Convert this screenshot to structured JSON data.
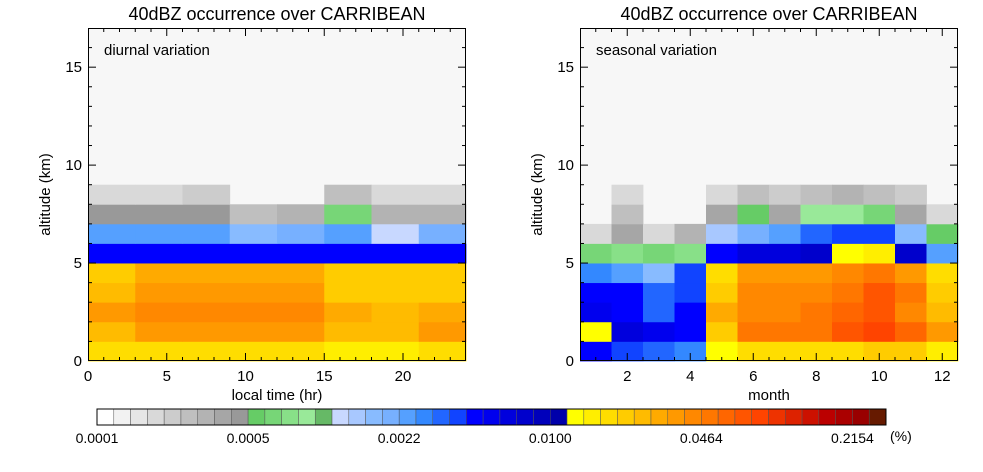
{
  "palette": [
    "#ffffff",
    "#f2f2f2",
    "#e6e6e6",
    "#d9d9d9",
    "#cccccc",
    "#bfbfbf",
    "#b3b3b3",
    "#a6a6a6",
    "#999999",
    "#66cc66",
    "#77d677",
    "#88e088",
    "#99e999",
    "#66b966",
    "#c8d8ff",
    "#a8c8ff",
    "#88bbff",
    "#77b0ff",
    "#55a0ff",
    "#3388ff",
    "#2266ff",
    "#1144ff",
    "#0000ff",
    "#0000ee",
    "#0000dd",
    "#0000cc",
    "#0000bb",
    "#0000aa",
    "#ffff00",
    "#ffee00",
    "#ffdd00",
    "#ffcc00",
    "#ffbb00",
    "#ffaa00",
    "#ff9900",
    "#ff8800",
    "#ff7700",
    "#ff6600",
    "#ff5500",
    "#ff4400",
    "#ee3300",
    "#dd2200",
    "#cc1100",
    "#bb0000",
    "#aa0000",
    "#990000",
    "#661a00"
  ],
  "chart_data": [
    {
      "type": "heatmap",
      "title": "40dBZ occurrence over CARRIBEAN",
      "annotation": "diurnal variation",
      "xlabel": "local time (hr)",
      "ylabel": "altitude (km)",
      "xlim": [
        0,
        24
      ],
      "ylim": [
        0,
        17
      ],
      "x_ticks": [
        "0",
        "5",
        "10",
        "15",
        "20"
      ],
      "x_tick_values": [
        0,
        5,
        10,
        15,
        20
      ],
      "y_ticks": [
        "0",
        "5",
        "10",
        "15"
      ],
      "y_tick_values": [
        0,
        5,
        10,
        15
      ],
      "background": "#f7f7f7",
      "x_edges": [
        0,
        3,
        6,
        9,
        12,
        15,
        18,
        21,
        24
      ],
      "y_edges": [
        0,
        1,
        2,
        3,
        4,
        5,
        6,
        7,
        8,
        9
      ],
      "color_index": [
        [
          30,
          30,
          30,
          30,
          30,
          29,
          29,
          30
        ],
        [
          32,
          34,
          34,
          34,
          34,
          32,
          32,
          34
        ],
        [
          34,
          35,
          35,
          35,
          35,
          33,
          32,
          33
        ],
        [
          32,
          34,
          34,
          34,
          34,
          31,
          31,
          31
        ],
        [
          31,
          33,
          33,
          33,
          33,
          31,
          31,
          31
        ],
        [
          22,
          22,
          22,
          22,
          22,
          22,
          22,
          22
        ],
        [
          18,
          18,
          18,
          16,
          17,
          18,
          14,
          17
        ],
        [
          8,
          8,
          8,
          5,
          6,
          10,
          6,
          6
        ],
        [
          3,
          3,
          4,
          null,
          null,
          5,
          3,
          3
        ],
        [
          null,
          null,
          null,
          null,
          null,
          2,
          null,
          null
        ]
      ]
    },
    {
      "type": "heatmap",
      "title": "40dBZ occurrence over CARRIBEAN",
      "annotation": "seasonal variation",
      "xlabel": "month",
      "ylabel": "altitude (km)",
      "xlim": [
        0.5,
        12.5
      ],
      "ylim": [
        0,
        17
      ],
      "x_ticks": [
        "2",
        "4",
        "6",
        "8",
        "10",
        "12"
      ],
      "x_tick_values": [
        2,
        4,
        6,
        8,
        10,
        12
      ],
      "y_ticks": [
        "0",
        "5",
        "10",
        "15"
      ],
      "y_tick_values": [
        0,
        5,
        10,
        15
      ],
      "background": "#f7f7f7",
      "x_edges": [
        0.5,
        1.5,
        2.5,
        3.5,
        4.5,
        5.5,
        6.5,
        7.5,
        8.5,
        9.5,
        10.5,
        11.5,
        12.5
      ],
      "y_edges": [
        0,
        1,
        2,
        3,
        4,
        5,
        6,
        7,
        8,
        9
      ],
      "color_index": [
        [
          22,
          21,
          20,
          19,
          28,
          30,
          30,
          30,
          30,
          31,
          31,
          29
        ],
        [
          28,
          24,
          23,
          22,
          31,
          36,
          36,
          36,
          38,
          39,
          37,
          34
        ],
        [
          23,
          22,
          20,
          22,
          33,
          35,
          35,
          36,
          37,
          38,
          35,
          32
        ],
        [
          22,
          22,
          20,
          21,
          31,
          35,
          35,
          35,
          36,
          38,
          36,
          31
        ],
        [
          19,
          18,
          16,
          21,
          30,
          34,
          34,
          34,
          35,
          36,
          34,
          30
        ],
        [
          10,
          11,
          10,
          11,
          22,
          24,
          24,
          25,
          28,
          29,
          25,
          18
        ],
        [
          3,
          7,
          3,
          6,
          15,
          17,
          18,
          20,
          21,
          21,
          16,
          9
        ],
        [
          null,
          5,
          null,
          null,
          7,
          9,
          7,
          12,
          12,
          10,
          7,
          3
        ],
        [
          null,
          3,
          null,
          null,
          3,
          5,
          4,
          5,
          6,
          5,
          4,
          null
        ],
        [
          null,
          null,
          null,
          null,
          null,
          2,
          null,
          2,
          2,
          null,
          null,
          null
        ]
      ]
    }
  ],
  "colorbar": {
    "labels": [
      "0.0001",
      "0.0005",
      "0.0022",
      "0.0100",
      "0.0464",
      "0.2154"
    ],
    "label_index": [
      0,
      9,
      18,
      27,
      36,
      45
    ],
    "unit": "(%)"
  }
}
